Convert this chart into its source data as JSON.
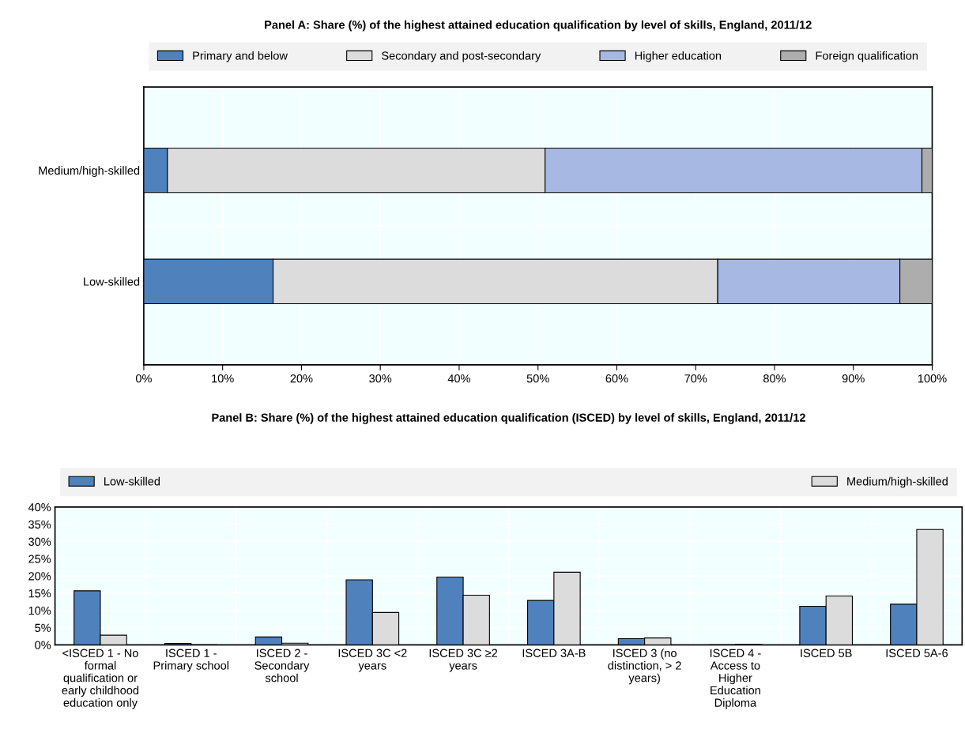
{
  "chart_data": [
    {
      "type": "bar",
      "orientation": "horizontal",
      "stacked": true,
      "title": "Panel A: Share (%) of the highest attained education qualification by level of skills, England, 2011/12",
      "categories": [
        "Medium/high-skilled",
        "Low-skilled"
      ],
      "series": [
        {
          "name": "Primary and below",
          "color": "#4f81bd",
          "values": [
            3.0,
            16.4
          ]
        },
        {
          "name": "Secondary and post-secondary",
          "color": "#dcdcdc",
          "values": [
            47.9,
            56.4
          ]
        },
        {
          "name": "Higher education",
          "color": "#a7b8e3",
          "values": [
            47.8,
            23.1
          ]
        },
        {
          "name": "Foreign qualification",
          "color": "#adadad",
          "values": [
            1.3,
            4.1
          ]
        }
      ],
      "xlim": [
        0,
        100
      ],
      "xticks": [
        {
          "value": 0,
          "label": "0%"
        },
        {
          "value": 10,
          "label": "10%"
        },
        {
          "value": 20,
          "label": "20%"
        },
        {
          "value": 30,
          "label": "30%"
        },
        {
          "value": 40,
          "label": "40%"
        },
        {
          "value": 50,
          "label": "50%"
        },
        {
          "value": 60,
          "label": "60%"
        },
        {
          "value": 70,
          "label": "70%"
        },
        {
          "value": 80,
          "label": "80%"
        },
        {
          "value": 90,
          "label": "90%"
        },
        {
          "value": 100,
          "label": "100%"
        }
      ],
      "grid": true,
      "legend": "top"
    },
    {
      "type": "bar",
      "title": "Panel B: Share (%) of the highest attained education qualification (ISCED) by level of skills, England, 2011/12",
      "categories": [
        "<ISCED 1 - No\nformal\nqualification or\nearly childhood\neducation only",
        "ISCED 1 -\nPrimary school",
        "ISCED 2 -\nSecondary\nschool",
        "ISCED 3C <2\nyears",
        "ISCED 3C ≥2\nyears",
        "ISCED 3A-B",
        "ISCED 3 (no\ndistinction, > 2\nyears)",
        "ISCED 4 -\nAccess to\nHigher\nEducation\nDiploma",
        "ISCED 5B",
        "ISCED 5A-6"
      ],
      "series": [
        {
          "name": "Low-skilled",
          "color": "#4f81bd",
          "values": [
            15.7,
            0.4,
            2.3,
            18.9,
            19.7,
            12.9,
            1.8,
            null,
            11.2,
            11.8
          ]
        },
        {
          "name": "Medium/high-skilled",
          "color": "#dcdcdc",
          "values": [
            2.8,
            null,
            0.5,
            9.4,
            14.4,
            21.1,
            2.0,
            0.2,
            14.2,
            33.5
          ]
        }
      ],
      "ylim": [
        0,
        40
      ],
      "yticks": [
        {
          "value": 0,
          "label": "0%"
        },
        {
          "value": 5,
          "label": "5%"
        },
        {
          "value": 10,
          "label": "10%"
        },
        {
          "value": 15,
          "label": "15%"
        },
        {
          "value": 20,
          "label": "20%"
        },
        {
          "value": 25,
          "label": "25%"
        },
        {
          "value": 30,
          "label": "30%"
        },
        {
          "value": 35,
          "label": "35%"
        },
        {
          "value": 40,
          "label": "40%"
        }
      ],
      "grid": true,
      "legend": "top"
    }
  ]
}
